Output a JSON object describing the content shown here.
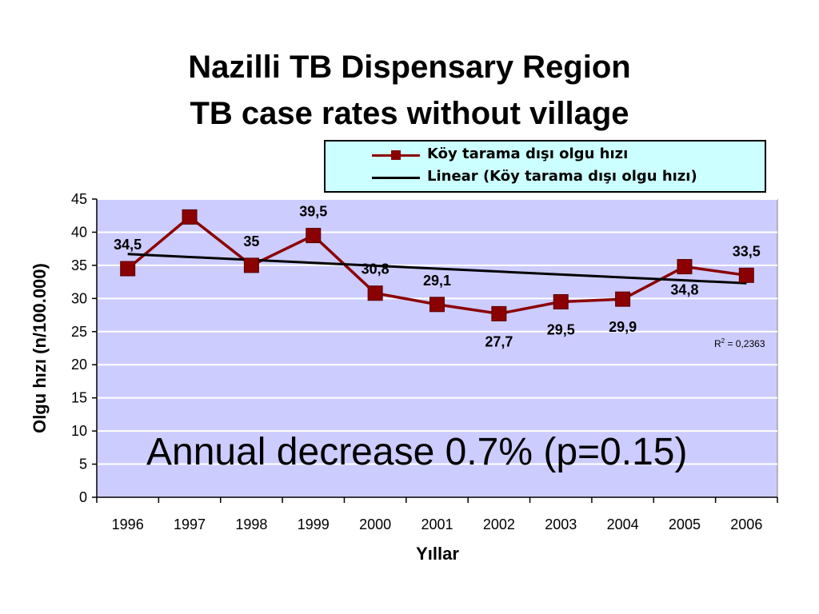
{
  "chart_data": {
    "type": "line",
    "title_line1": "Nazilli TB Dispensary Region",
    "title_line2": "TB case rates without village",
    "xlabel": "Yıllar",
    "ylabel": "Olgu hızı (n/100.000)",
    "categories": [
      "1996",
      "1997",
      "1998",
      "1999",
      "2000",
      "2001",
      "2002",
      "2003",
      "2004",
      "2005",
      "2006"
    ],
    "ylim": [
      0,
      45
    ],
    "yticks": [
      0,
      5,
      10,
      15,
      20,
      25,
      30,
      35,
      40,
      45
    ],
    "grid": true,
    "legend_position": "top-right",
    "series": [
      {
        "name": "Köy tarama dışı olgu hızı",
        "values": [
          34.5,
          42.3,
          35,
          39.5,
          30.8,
          29.1,
          27.7,
          29.5,
          29.9,
          34.8,
          33.5
        ],
        "data_labels": [
          "34,5",
          "",
          "35",
          "39,5",
          "30,8",
          "29,1",
          "27,7",
          "29,5",
          "29,9",
          "34,8",
          "33,5"
        ],
        "color": "#8b0000"
      },
      {
        "name": "Linear (Köy tarama dışı olgu hızı)",
        "values": [
          36.7,
          36.26,
          35.82,
          35.38,
          34.94,
          34.5,
          34.06,
          33.62,
          33.18,
          32.74,
          32.3
        ],
        "color": "#000000"
      }
    ],
    "r_squared_prefix": "R",
    "r_squared_sup": "2",
    "r_squared_value": " = 0,2363",
    "annotation": "Annual decrease 0.7% (p=0.15)",
    "plot_background": "#ccccff"
  }
}
